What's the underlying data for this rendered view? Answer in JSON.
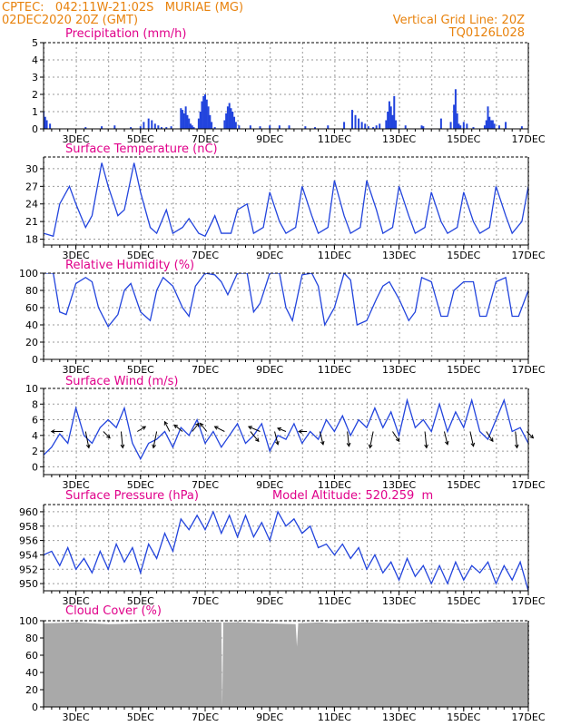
{
  "header": {
    "station_line": "CPTEC:   042:11W-21:02S   MURIAE (MG)",
    "date_line": "02DEC2020 20Z (GMT)",
    "grid_line": "Vertical Grid Line: 20Z",
    "run_code": "TQ0126L028"
  },
  "colors": {
    "header_text": "#e8820c",
    "panel_title": "#e0008a",
    "series_line": "#2244dd",
    "bar_fill": "#2244dd",
    "cloud_fill": "#a9a9a9"
  },
  "x_axis": {
    "day_start": 2,
    "day_end": 17,
    "tick_labels": [
      "3DEC",
      "5DEC",
      "7DEC",
      "9DEC",
      "11DEC",
      "13DEC",
      "15DEC",
      "17DEC"
    ],
    "tick_days": [
      3,
      5,
      7,
      9,
      11,
      13,
      15,
      17
    ]
  },
  "chart_data": [
    {
      "key": "precip",
      "type": "bar",
      "title": "Precipitation (mm/h)",
      "ylim": [
        0,
        5
      ],
      "yticks": [
        0,
        1,
        2,
        3,
        4,
        5
      ],
      "x": [
        2.0,
        2.05,
        2.1,
        2.2,
        3.3,
        3.8,
        4.2,
        4.7,
        5.0,
        5.1,
        5.25,
        5.35,
        5.45,
        5.55,
        5.65,
        5.8,
        5.95,
        6.25,
        6.3,
        6.35,
        6.4,
        6.45,
        6.5,
        6.55,
        6.6,
        6.65,
        6.8,
        6.85,
        6.9,
        6.95,
        7.0,
        7.05,
        7.1,
        7.15,
        7.2,
        7.3,
        7.6,
        7.65,
        7.7,
        7.75,
        7.8,
        7.85,
        7.9,
        7.95,
        8.05,
        8.4,
        8.7,
        9.0,
        9.3,
        9.6,
        10.1,
        10.4,
        10.8,
        11.3,
        11.55,
        11.65,
        11.75,
        11.85,
        11.95,
        12.05,
        12.2,
        12.3,
        12.4,
        12.6,
        12.65,
        12.7,
        12.75,
        12.8,
        12.85,
        12.9,
        13.2,
        13.7,
        13.75,
        14.3,
        14.6,
        14.7,
        14.75,
        14.8,
        14.85,
        14.9,
        15.0,
        15.1,
        15.3,
        15.65,
        15.7,
        15.75,
        15.8,
        15.85,
        15.9,
        15.95,
        16.1,
        16.3,
        16.8
      ],
      "values": [
        1.0,
        0.7,
        0.5,
        0.3,
        0.1,
        0.15,
        0.2,
        0.1,
        0.15,
        0.4,
        0.6,
        0.5,
        0.3,
        0.2,
        0.1,
        0.1,
        0.15,
        1.2,
        1.1,
        0.9,
        1.3,
        0.8,
        0.6,
        0.3,
        0.2,
        0.1,
        0.6,
        1.0,
        1.6,
        1.9,
        2.0,
        1.7,
        1.3,
        0.8,
        0.4,
        0.1,
        0.5,
        0.9,
        1.3,
        1.5,
        1.2,
        1.0,
        0.7,
        0.4,
        0.2,
        0.2,
        0.15,
        0.2,
        0.2,
        0.2,
        0.15,
        0.1,
        0.2,
        0.4,
        1.1,
        0.8,
        0.6,
        0.4,
        0.3,
        0.15,
        0.1,
        0.2,
        0.3,
        0.5,
        1.0,
        1.6,
        1.3,
        0.8,
        1.9,
        0.5,
        0.2,
        0.2,
        0.15,
        0.6,
        0.4,
        1.4,
        2.3,
        0.9,
        0.3,
        0.2,
        0.4,
        0.3,
        0.1,
        0.2,
        0.5,
        1.3,
        0.7,
        0.5,
        0.5,
        0.3,
        0.2,
        0.4,
        0.15
      ]
    },
    {
      "key": "temp",
      "type": "line",
      "title": "Surface Temperature (nC)",
      "ylim": [
        17,
        32
      ],
      "yticks": [
        18,
        21,
        24,
        27,
        30
      ],
      "x": [
        2.0,
        2.3,
        2.5,
        2.8,
        3.0,
        3.3,
        3.5,
        3.8,
        4.0,
        4.3,
        4.5,
        4.8,
        5.0,
        5.3,
        5.5,
        5.8,
        6.0,
        6.3,
        6.5,
        6.8,
        7.0,
        7.3,
        7.5,
        7.8,
        8.0,
        8.3,
        8.5,
        8.8,
        9.0,
        9.3,
        9.5,
        9.8,
        10.0,
        10.3,
        10.5,
        10.8,
        11.0,
        11.3,
        11.5,
        11.8,
        12.0,
        12.3,
        12.5,
        12.8,
        13.0,
        13.3,
        13.5,
        13.8,
        14.0,
        14.3,
        14.5,
        14.8,
        15.0,
        15.3,
        15.5,
        15.8,
        16.0,
        16.3,
        16.5,
        16.8,
        17.0
      ],
      "values": [
        19,
        18.5,
        24,
        27,
        24,
        20,
        22,
        31,
        27,
        22,
        23,
        31,
        26,
        20,
        19,
        23,
        19,
        20,
        21.5,
        19,
        18.5,
        22,
        19,
        19,
        23,
        24,
        19,
        20,
        26,
        21,
        19,
        20,
        27,
        22,
        19,
        20,
        28,
        22,
        19,
        20,
        28,
        23,
        19,
        20,
        27,
        22,
        19,
        20,
        26,
        21,
        19,
        20,
        26,
        21,
        19,
        20,
        27,
        22,
        19,
        21,
        27
      ]
    },
    {
      "key": "rh",
      "type": "line",
      "title": "Relative Humidity (%)",
      "ylim": [
        0,
        100
      ],
      "yticks": [
        0,
        20,
        40,
        60,
        80,
        100
      ],
      "x": [
        2.0,
        2.3,
        2.5,
        2.7,
        3.0,
        3.3,
        3.5,
        3.7,
        4.0,
        4.3,
        4.5,
        4.7,
        5.0,
        5.3,
        5.5,
        5.7,
        6.0,
        6.3,
        6.5,
        6.7,
        7.0,
        7.3,
        7.5,
        7.7,
        8.0,
        8.3,
        8.5,
        8.7,
        9.0,
        9.3,
        9.5,
        9.7,
        10.0,
        10.3,
        10.5,
        10.7,
        11.0,
        11.3,
        11.5,
        11.7,
        12.0,
        12.3,
        12.5,
        12.7,
        13.0,
        13.3,
        13.5,
        13.7,
        14.0,
        14.3,
        14.5,
        14.7,
        15.0,
        15.3,
        15.5,
        15.7,
        16.0,
        16.3,
        16.5,
        16.7,
        17.0
      ],
      "values": [
        100,
        100,
        55,
        52,
        88,
        95,
        90,
        60,
        38,
        52,
        80,
        88,
        55,
        45,
        80,
        95,
        85,
        60,
        50,
        85,
        100,
        98,
        90,
        75,
        100,
        100,
        55,
        65,
        100,
        100,
        60,
        45,
        98,
        100,
        85,
        40,
        60,
        100,
        92,
        40,
        45,
        70,
        85,
        90,
        70,
        45,
        55,
        95,
        90,
        50,
        50,
        80,
        90,
        90,
        50,
        50,
        90,
        95,
        50,
        50,
        80
      ]
    },
    {
      "key": "wind",
      "type": "line",
      "title": "Surface Wind (m/s)",
      "ylim": [
        -1,
        10
      ],
      "yticks": [
        0,
        2,
        4,
        6,
        8,
        10
      ],
      "x": [
        2.0,
        2.25,
        2.5,
        2.75,
        3.0,
        3.25,
        3.5,
        3.75,
        4.0,
        4.25,
        4.5,
        4.75,
        5.0,
        5.25,
        5.5,
        5.75,
        6.0,
        6.25,
        6.5,
        6.75,
        7.0,
        7.25,
        7.5,
        7.75,
        8.0,
        8.25,
        8.5,
        8.75,
        9.0,
        9.25,
        9.5,
        9.75,
        10.0,
        10.25,
        10.5,
        10.75,
        11.0,
        11.25,
        11.5,
        11.75,
        12.0,
        12.25,
        12.5,
        12.75,
        13.0,
        13.25,
        13.5,
        13.75,
        14.0,
        14.25,
        14.5,
        14.75,
        15.0,
        15.25,
        15.5,
        15.75,
        16.0,
        16.25,
        16.5,
        16.75,
        17.0
      ],
      "values": [
        1.5,
        2.5,
        4.2,
        3.0,
        7.5,
        4.0,
        3.0,
        5.0,
        6.0,
        5.0,
        7.5,
        3.0,
        1.0,
        3.0,
        3.5,
        4.5,
        2.5,
        5.0,
        4.0,
        6.0,
        3.0,
        4.5,
        2.5,
        4.0,
        5.5,
        3.0,
        4.0,
        5.5,
        2.0,
        4.0,
        3.5,
        5.5,
        3.0,
        4.5,
        3.5,
        6.0,
        4.5,
        6.5,
        4.0,
        6.0,
        5.0,
        7.5,
        5.0,
        7.0,
        4.0,
        8.5,
        5.0,
        6.0,
        4.5,
        8.0,
        4.5,
        7.0,
        5.0,
        8.5,
        4.5,
        3.5,
        6.0,
        8.5,
        4.5,
        5.0,
        3.0
      ],
      "vectors": [
        {
          "x": 2.6,
          "u": -0.7,
          "v": 0.0
        },
        {
          "x": 3.3,
          "u": 0.2,
          "v": -1.0
        },
        {
          "x": 3.85,
          "u": 0.4,
          "v": -0.4
        },
        {
          "x": 4.4,
          "u": 0.1,
          "v": -1.0
        },
        {
          "x": 4.9,
          "u": 0.5,
          "v": 0.3
        },
        {
          "x": 5.5,
          "u": -0.2,
          "v": -1.0
        },
        {
          "x": 5.9,
          "u": -0.3,
          "v": 0.6
        },
        {
          "x": 6.3,
          "u": -0.5,
          "v": 0.4
        },
        {
          "x": 6.6,
          "u": 0.4,
          "v": 0.5
        },
        {
          "x": 7.05,
          "u": -0.4,
          "v": 0.5
        },
        {
          "x": 7.6,
          "u": -0.6,
          "v": 0.3
        },
        {
          "x": 8.4,
          "u": 0.5,
          "v": -0.6
        },
        {
          "x": 8.7,
          "u": -0.7,
          "v": 0.3
        },
        {
          "x": 9.15,
          "u": 0.2,
          "v": -0.8
        },
        {
          "x": 9.5,
          "u": -0.5,
          "v": 0.2
        },
        {
          "x": 10.15,
          "u": -0.5,
          "v": 0.0
        },
        {
          "x": 10.55,
          "u": 0.2,
          "v": -0.8
        },
        {
          "x": 11.4,
          "u": 0.1,
          "v": -0.9
        },
        {
          "x": 12.2,
          "u": -0.2,
          "v": -1.0
        },
        {
          "x": 12.8,
          "u": 0.4,
          "v": -0.6
        },
        {
          "x": 13.8,
          "u": 0.1,
          "v": -1.0
        },
        {
          "x": 14.4,
          "u": 0.2,
          "v": -0.8
        },
        {
          "x": 15.2,
          "u": 0.2,
          "v": -0.9
        },
        {
          "x": 15.7,
          "u": 0.4,
          "v": -0.6
        },
        {
          "x": 16.6,
          "u": 0.1,
          "v": -1.0
        },
        {
          "x": 16.95,
          "u": 0.4,
          "v": -0.4
        }
      ]
    },
    {
      "key": "pres",
      "type": "line",
      "title": "Surface Pressure (hPa)",
      "subtitle": "Model Altitude: 520.259  m",
      "ylim": [
        949,
        961
      ],
      "yticks": [
        950,
        952,
        954,
        956,
        958,
        960
      ],
      "x": [
        2.0,
        2.25,
        2.5,
        2.75,
        3.0,
        3.25,
        3.5,
        3.75,
        4.0,
        4.25,
        4.5,
        4.75,
        5.0,
        5.25,
        5.5,
        5.75,
        6.0,
        6.25,
        6.5,
        6.75,
        7.0,
        7.25,
        7.5,
        7.75,
        8.0,
        8.25,
        8.5,
        8.75,
        9.0,
        9.25,
        9.5,
        9.75,
        10.0,
        10.25,
        10.5,
        10.75,
        11.0,
        11.25,
        11.5,
        11.75,
        12.0,
        12.25,
        12.5,
        12.75,
        13.0,
        13.25,
        13.5,
        13.75,
        14.0,
        14.25,
        14.5,
        14.75,
        15.0,
        15.25,
        15.5,
        15.75,
        16.0,
        16.25,
        16.5,
        16.75,
        17.0
      ],
      "values": [
        954,
        954.5,
        952.5,
        955,
        952,
        953.5,
        951.5,
        954.5,
        952,
        955.5,
        953,
        955,
        951.5,
        955.5,
        953.5,
        957,
        954.5,
        959,
        957.5,
        959.5,
        957.5,
        960,
        957,
        959.5,
        956.5,
        959.5,
        956.5,
        958.5,
        956,
        960,
        958,
        959,
        957,
        958,
        955,
        955.5,
        954,
        955.5,
        953.5,
        955,
        952,
        954,
        951.5,
        953,
        950.5,
        953.5,
        951,
        952.5,
        950,
        952.5,
        950,
        953,
        950.5,
        952.5,
        951.5,
        953,
        950,
        952.5,
        950.5,
        953,
        949
      ]
    },
    {
      "key": "cloud",
      "type": "area",
      "title": "Cloud Cover (%)",
      "ylim": [
        0,
        100
      ],
      "yticks": [
        0,
        20,
        40,
        60,
        80,
        100
      ],
      "x": [
        2.0,
        3.0,
        4.0,
        5.0,
        6.0,
        7.0,
        7.5,
        7.53,
        7.56,
        8.0,
        9.0,
        9.8,
        9.84,
        9.88,
        10.5,
        11.0,
        12.0,
        13.0,
        14.0,
        15.0,
        16.0,
        17.0
      ],
      "values": [
        97,
        98,
        96,
        97,
        98,
        98,
        98,
        0,
        98,
        98,
        97,
        96,
        70,
        97,
        98,
        97,
        98,
        97,
        98,
        97,
        98,
        98
      ]
    }
  ]
}
